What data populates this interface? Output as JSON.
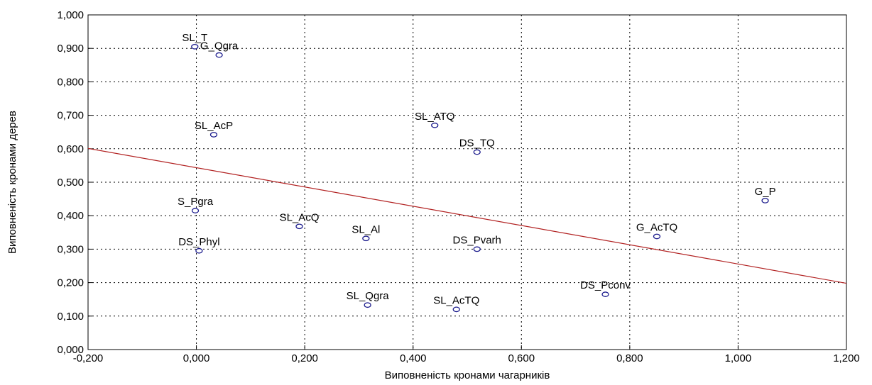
{
  "chart_data": {
    "type": "scatter",
    "title": "",
    "xlabel": "Виповненість кронами чагарників",
    "ylabel": "Виповненість кронами дерев",
    "xlim": [
      -0.2,
      1.2
    ],
    "ylim": [
      0.0,
      1.0
    ],
    "x_ticks": [
      "-0,200",
      "0,000",
      "0,200",
      "0,400",
      "0,600",
      "0,800",
      "1,000",
      "1,200"
    ],
    "x_tick_values": [
      -0.2,
      0.0,
      0.2,
      0.4,
      0.6,
      0.8,
      1.0,
      1.2
    ],
    "y_ticks": [
      "0,000",
      "0,100",
      "0,200",
      "0,300",
      "0,400",
      "0,500",
      "0,600",
      "0,700",
      "0,800",
      "0,900",
      "1,000"
    ],
    "y_tick_values": [
      0.0,
      0.1,
      0.2,
      0.3,
      0.4,
      0.5,
      0.6,
      0.7,
      0.8,
      0.9,
      1.0
    ],
    "grid": true,
    "points": [
      {
        "label": "SL_T",
        "x": -0.003,
        "y": 0.905
      },
      {
        "label": "G_Qgra",
        "x": 0.042,
        "y": 0.88
      },
      {
        "label": "SL_AcP",
        "x": 0.032,
        "y": 0.642
      },
      {
        "label": "SL_ATQ",
        "x": 0.44,
        "y": 0.67
      },
      {
        "label": "DS_TQ",
        "x": 0.518,
        "y": 0.59
      },
      {
        "label": "G_P",
        "x": 1.05,
        "y": 0.445
      },
      {
        "label": "S_Pgra",
        "x": -0.002,
        "y": 0.415
      },
      {
        "label": "SL_AcQ",
        "x": 0.19,
        "y": 0.368
      },
      {
        "label": "SL_Al",
        "x": 0.313,
        "y": 0.332
      },
      {
        "label": "DS_Phyl",
        "x": 0.005,
        "y": 0.295
      },
      {
        "label": "DS_Pvarh",
        "x": 0.518,
        "y": 0.3
      },
      {
        "label": "G_AcTQ",
        "x": 0.85,
        "y": 0.338
      },
      {
        "label": "DS_Pconv",
        "x": 0.755,
        "y": 0.165
      },
      {
        "label": "SL_Qgra",
        "x": 0.316,
        "y": 0.133
      },
      {
        "label": "SL_AcTQ",
        "x": 0.48,
        "y": 0.12
      }
    ],
    "trend_line": {
      "x": [
        -0.2,
        1.2
      ],
      "y": [
        0.601,
        0.198
      ]
    },
    "colors": {
      "marker": "#1a1a8c",
      "trend": "#b22222",
      "grid": "#000000",
      "frame": "#000000"
    }
  }
}
